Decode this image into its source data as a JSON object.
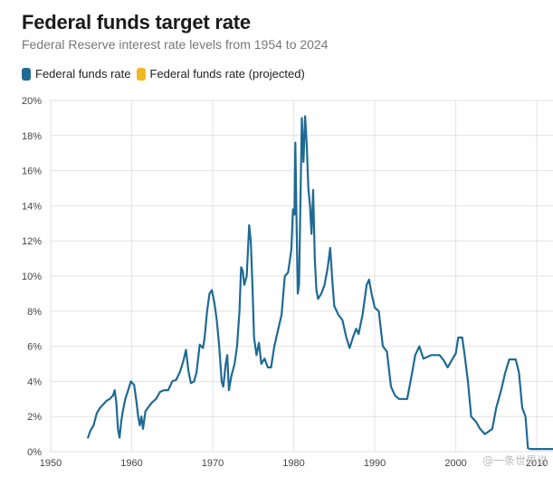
{
  "header": {
    "title": "Federal funds target rate",
    "subtitle": "Federal Reserve interest rate levels from 1954 to 2024"
  },
  "legend": [
    {
      "label": "Federal funds rate",
      "color": "#1f6a94"
    },
    {
      "label": "Federal funds rate (projected)",
      "color": "#f0b823"
    }
  ],
  "watermark": "@一条世界说",
  "chart_data": {
    "type": "line",
    "title": "Federal funds target rate",
    "subtitle": "Federal Reserve interest rate levels from 1954 to 2024",
    "xlabel": "",
    "ylabel": "",
    "xlim": [
      1950,
      2012
    ],
    "ylim": [
      0,
      20
    ],
    "x_ticks": [
      1950,
      1960,
      1970,
      1980,
      1990,
      2000,
      2010
    ],
    "x_tick_labels": [
      "1950",
      "1960",
      "1970",
      "1980",
      "1990",
      "2000",
      "2010"
    ],
    "y_ticks": [
      0,
      2,
      4,
      6,
      8,
      10,
      12,
      14,
      16,
      18,
      20
    ],
    "y_tick_labels": [
      "0%",
      "2%",
      "4%",
      "6%",
      "8%",
      "10%",
      "12%",
      "14%",
      "16%",
      "18%",
      "20%"
    ],
    "grid": true,
    "legend_position": "top-left",
    "series": [
      {
        "name": "Federal funds rate",
        "color": "#1f6a94",
        "points": [
          [
            1954.6,
            0.8
          ],
          [
            1954.9,
            1.2
          ],
          [
            1955.3,
            1.5
          ],
          [
            1955.7,
            2.2
          ],
          [
            1956.1,
            2.5
          ],
          [
            1956.5,
            2.7
          ],
          [
            1956.9,
            2.9
          ],
          [
            1957.3,
            3.0
          ],
          [
            1957.7,
            3.2
          ],
          [
            1957.9,
            3.5
          ],
          [
            1958.1,
            2.8
          ],
          [
            1958.3,
            1.3
          ],
          [
            1958.5,
            0.8
          ],
          [
            1958.7,
            1.7
          ],
          [
            1958.9,
            2.3
          ],
          [
            1959.2,
            3.0
          ],
          [
            1959.5,
            3.4
          ],
          [
            1959.9,
            4.0
          ],
          [
            1960.3,
            3.8
          ],
          [
            1960.6,
            2.8
          ],
          [
            1960.8,
            2.0
          ],
          [
            1961.0,
            1.5
          ],
          [
            1961.2,
            2.0
          ],
          [
            1961.4,
            1.3
          ],
          [
            1961.7,
            2.3
          ],
          [
            1962.0,
            2.5
          ],
          [
            1962.5,
            2.8
          ],
          [
            1963.0,
            3.0
          ],
          [
            1963.5,
            3.4
          ],
          [
            1964.0,
            3.5
          ],
          [
            1964.5,
            3.5
          ],
          [
            1965.0,
            4.0
          ],
          [
            1965.5,
            4.1
          ],
          [
            1966.0,
            4.6
          ],
          [
            1966.4,
            5.2
          ],
          [
            1966.7,
            5.8
          ],
          [
            1967.0,
            4.6
          ],
          [
            1967.3,
            3.9
          ],
          [
            1967.7,
            4.0
          ],
          [
            1968.0,
            4.5
          ],
          [
            1968.4,
            6.1
          ],
          [
            1968.8,
            5.9
          ],
          [
            1969.0,
            6.5
          ],
          [
            1969.3,
            8.0
          ],
          [
            1969.6,
            9.0
          ],
          [
            1969.9,
            9.2
          ],
          [
            1970.2,
            8.5
          ],
          [
            1970.5,
            7.5
          ],
          [
            1970.8,
            6.0
          ],
          [
            1971.1,
            4.0
          ],
          [
            1971.3,
            3.7
          ],
          [
            1971.6,
            5.0
          ],
          [
            1971.8,
            5.5
          ],
          [
            1972.0,
            3.5
          ],
          [
            1972.3,
            4.3
          ],
          [
            1972.7,
            5.0
          ],
          [
            1973.0,
            6.0
          ],
          [
            1973.3,
            8.0
          ],
          [
            1973.5,
            10.5
          ],
          [
            1973.7,
            10.3
          ],
          [
            1973.9,
            9.5
          ],
          [
            1974.2,
            10.0
          ],
          [
            1974.5,
            12.9
          ],
          [
            1974.7,
            12.0
          ],
          [
            1974.9,
            9.5
          ],
          [
            1975.1,
            6.5
          ],
          [
            1975.4,
            5.5
          ],
          [
            1975.7,
            6.2
          ],
          [
            1976.0,
            5.0
          ],
          [
            1976.4,
            5.3
          ],
          [
            1976.8,
            4.8
          ],
          [
            1977.2,
            4.8
          ],
          [
            1977.6,
            6.0
          ],
          [
            1978.0,
            6.8
          ],
          [
            1978.5,
            7.8
          ],
          [
            1978.9,
            10.0
          ],
          [
            1979.3,
            10.2
          ],
          [
            1979.7,
            11.5
          ],
          [
            1979.9,
            13.8
          ],
          [
            1980.1,
            13.5
          ],
          [
            1980.2,
            17.6
          ],
          [
            1980.35,
            13.0
          ],
          [
            1980.5,
            9.0
          ],
          [
            1980.65,
            9.5
          ],
          [
            1980.85,
            15.0
          ],
          [
            1981.0,
            19.0
          ],
          [
            1981.2,
            16.5
          ],
          [
            1981.4,
            19.1
          ],
          [
            1981.6,
            17.5
          ],
          [
            1981.8,
            15.0
          ],
          [
            1982.0,
            14.0
          ],
          [
            1982.2,
            12.4
          ],
          [
            1982.4,
            14.9
          ],
          [
            1982.6,
            11.0
          ],
          [
            1982.8,
            9.2
          ],
          [
            1983.0,
            8.7
          ],
          [
            1983.4,
            9.0
          ],
          [
            1983.8,
            9.5
          ],
          [
            1984.2,
            10.5
          ],
          [
            1984.5,
            11.6
          ],
          [
            1984.8,
            9.5
          ],
          [
            1985.0,
            8.3
          ],
          [
            1985.5,
            7.8
          ],
          [
            1986.0,
            7.5
          ],
          [
            1986.5,
            6.5
          ],
          [
            1986.9,
            5.9
          ],
          [
            1987.3,
            6.5
          ],
          [
            1987.7,
            7.0
          ],
          [
            1988.0,
            6.7
          ],
          [
            1988.5,
            7.8
          ],
          [
            1989.0,
            9.5
          ],
          [
            1989.3,
            9.8
          ],
          [
            1989.6,
            9.0
          ],
          [
            1990.0,
            8.2
          ],
          [
            1990.5,
            8.0
          ],
          [
            1991.0,
            6.0
          ],
          [
            1991.5,
            5.7
          ],
          [
            1992.0,
            3.7
          ],
          [
            1992.5,
            3.2
          ],
          [
            1993.0,
            3.0
          ],
          [
            1994.0,
            3.0
          ],
          [
            1994.5,
            4.2
          ],
          [
            1995.0,
            5.5
          ],
          [
            1995.5,
            6.0
          ],
          [
            1996.0,
            5.3
          ],
          [
            1997.0,
            5.5
          ],
          [
            1998.0,
            5.5
          ],
          [
            1998.5,
            5.2
          ],
          [
            1999.0,
            4.8
          ],
          [
            1999.5,
            5.2
          ],
          [
            2000.0,
            5.6
          ],
          [
            2000.3,
            6.5
          ],
          [
            2000.8,
            6.5
          ],
          [
            2001.1,
            5.5
          ],
          [
            2001.5,
            4.0
          ],
          [
            2001.9,
            2.0
          ],
          [
            2002.5,
            1.7
          ],
          [
            2003.0,
            1.3
          ],
          [
            2003.6,
            1.0
          ],
          [
            2004.5,
            1.3
          ],
          [
            2005.0,
            2.5
          ],
          [
            2005.6,
            3.5
          ],
          [
            2006.1,
            4.5
          ],
          [
            2006.6,
            5.25
          ],
          [
            2007.4,
            5.25
          ],
          [
            2007.8,
            4.5
          ],
          [
            2008.2,
            2.5
          ],
          [
            2008.6,
            2.0
          ],
          [
            2008.9,
            0.2
          ],
          [
            2009.2,
            0.15
          ],
          [
            2010.5,
            0.15
          ],
          [
            2012.0,
            0.15
          ]
        ]
      },
      {
        "name": "Federal funds rate (projected)",
        "color": "#f0b823",
        "points": []
      }
    ]
  }
}
